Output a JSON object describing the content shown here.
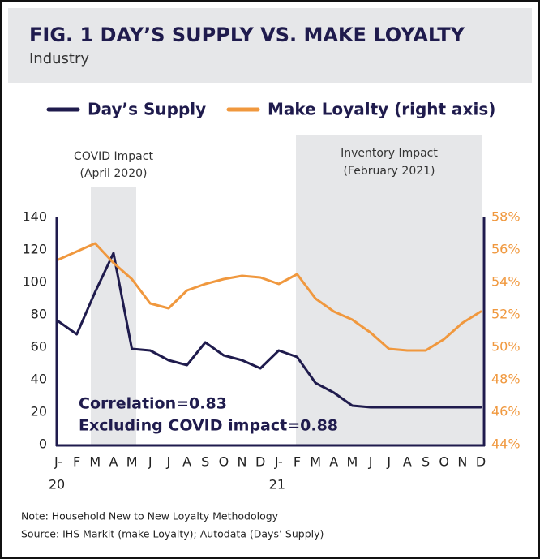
{
  "chart_data": {
    "type": "line",
    "title": "FIG. 1 DAY’S SUPPLY VS. MAKE LOYALTY",
    "subtitle": "Industry",
    "categories": [
      "J-",
      "F",
      "M",
      "A",
      "M",
      "J",
      "J",
      "A",
      "S",
      "O",
      "N",
      "D",
      "J-",
      "F",
      "M",
      "A",
      "M",
      "J",
      "J",
      "A",
      "S",
      "O",
      "N",
      "D"
    ],
    "category_years": [
      "20",
      null,
      null,
      null,
      null,
      null,
      null,
      null,
      null,
      null,
      null,
      null,
      "21",
      null,
      null,
      null,
      null,
      null,
      null,
      null,
      null,
      null,
      null,
      null
    ],
    "series": [
      {
        "name": "Day’s Supply",
        "color": "#1f1b4d",
        "values": [
          76,
          68,
          94,
          118,
          59,
          58,
          52,
          49,
          63,
          55,
          52,
          47,
          58,
          54,
          38,
          32,
          24,
          23,
          23,
          23,
          23,
          23,
          23,
          23
        ]
      },
      {
        "name": "Make Loyalty (right axis)",
        "color": "#f0983e",
        "axis": "y2",
        "values": [
          55.4,
          55.9,
          56.4,
          55.2,
          54.2,
          52.7,
          52.4,
          53.5,
          53.9,
          54.2,
          54.4,
          54.3,
          53.9,
          54.5,
          53.0,
          52.2,
          51.7,
          50.9,
          49.9,
          49.8,
          49.8,
          50.5,
          51.5,
          52.2
        ]
      }
    ],
    "ylim": [
      0,
      140
    ],
    "yticks": [
      0,
      20,
      40,
      60,
      80,
      100,
      120,
      140
    ],
    "y2lim": [
      44,
      58
    ],
    "y2ticks": [
      {
        "value": 44,
        "label": "44%"
      },
      {
        "value": 46,
        "label": "46%"
      },
      {
        "value": 48,
        "label": "48%"
      },
      {
        "value": 50,
        "label": "50%"
      },
      {
        "value": 52,
        "label": "52%"
      },
      {
        "value": 54,
        "label": "54%"
      },
      {
        "value": 56,
        "label": "56%"
      },
      {
        "value": 58,
        "label": "58%"
      }
    ],
    "shaded_regions": [
      {
        "label": "COVID Impact",
        "sublabel": "(April 2020)"
      },
      {
        "label": "Inventory Impact",
        "sublabel": "(February 2021)"
      }
    ],
    "annotations": [
      "Correlation=0.83",
      "Excluding COVID impact=0.88"
    ],
    "notes": [
      "Note: Household New to New Loyalty Methodology",
      "Source: IHS Markit (make Loyalty); Autodata (Days’ Supply)"
    ]
  }
}
